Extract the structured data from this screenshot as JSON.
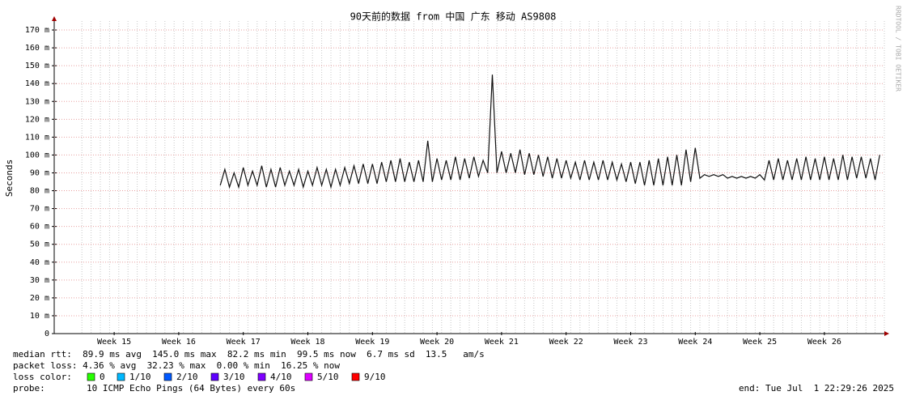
{
  "chart_data": {
    "type": "line",
    "title": "90天前的数据 from 中国 广东 移动 AS9808",
    "ylabel": "Seconds",
    "watermark": "RRDTOOL / TOBI OETIKER",
    "color": "#101010",
    "grid": true,
    "xlim": [
      0,
      90
    ],
    "xticks": [
      {
        "value": 6.5,
        "label": "Week 15"
      },
      {
        "value": 13.5,
        "label": "Week 16"
      },
      {
        "value": 20.5,
        "label": "Week 17"
      },
      {
        "value": 27.5,
        "label": "Week 18"
      },
      {
        "value": 34.5,
        "label": "Week 19"
      },
      {
        "value": 41.5,
        "label": "Week 20"
      },
      {
        "value": 48.5,
        "label": "Week 21"
      },
      {
        "value": 55.5,
        "label": "Week 22"
      },
      {
        "value": 62.5,
        "label": "Week 23"
      },
      {
        "value": 69.5,
        "label": "Week 24"
      },
      {
        "value": 76.5,
        "label": "Week 25"
      },
      {
        "value": 83.5,
        "label": "Week 26"
      }
    ],
    "ylim": [
      0,
      0.175
    ],
    "yticks": [
      0,
      {
        "value": 0.01,
        "label": "10 m"
      },
      {
        "value": 0.02,
        "label": "20 m"
      },
      {
        "value": 0.03,
        "label": "30 m"
      },
      {
        "value": 0.04,
        "label": "40 m"
      },
      {
        "value": 0.05,
        "label": "50 m"
      },
      {
        "value": 0.06,
        "label": "60 m"
      },
      {
        "value": 0.07,
        "label": "70 m"
      },
      {
        "value": 0.08,
        "label": "80 m"
      },
      {
        "value": 0.09,
        "label": "90 m"
      },
      {
        "value": 0.1,
        "label": "100 m"
      },
      {
        "value": 0.11,
        "label": "110 m"
      },
      {
        "value": 0.12,
        "label": "120 m"
      },
      {
        "value": 0.13,
        "label": "130 m"
      },
      {
        "value": 0.14,
        "label": "140 m"
      },
      {
        "value": 0.15,
        "label": "150 m"
      },
      {
        "value": 0.16,
        "label": "160 m"
      },
      {
        "value": 0.17,
        "label": "170 m"
      }
    ],
    "x": [
      18,
      18.5,
      19,
      19.5,
      20,
      20.5,
      21,
      21.5,
      22,
      22.5,
      23,
      23.5,
      24,
      24.5,
      25,
      25.5,
      26,
      26.5,
      27,
      27.5,
      28,
      28.5,
      29,
      29.5,
      30,
      30.5,
      31,
      31.5,
      32,
      32.5,
      33,
      33.5,
      34,
      34.5,
      35,
      35.5,
      36,
      36.5,
      37,
      37.5,
      38,
      38.5,
      39,
      39.5,
      40,
      40.5,
      41,
      41.5,
      42,
      42.5,
      43,
      43.5,
      44,
      44.5,
      45,
      45.5,
      46,
      46.5,
      47,
      47.5,
      48,
      48.5,
      49,
      49.5,
      50,
      50.5,
      51,
      51.5,
      52,
      52.5,
      53,
      53.5,
      54,
      54.5,
      55,
      55.5,
      56,
      56.5,
      57,
      57.5,
      58,
      58.5,
      59,
      59.5,
      60,
      60.5,
      61,
      61.5,
      62,
      62.5,
      63,
      63.5,
      64,
      64.5,
      65,
      65.5,
      66,
      66.5,
      67,
      67.5,
      68,
      68.5,
      69,
      69.5,
      70,
      70.5,
      71,
      71.5,
      72,
      72.5,
      73,
      73.5,
      74,
      74.5,
      75,
      75.5,
      76,
      76.5,
      77,
      77.5,
      78,
      78.5,
      79,
      79.5,
      80,
      80.5,
      81,
      81.5,
      82,
      82.5,
      83,
      83.5,
      84,
      84.5,
      85,
      85.5,
      86,
      86.5,
      87,
      87.5,
      88,
      88.5,
      89,
      89.5
    ],
    "values": [
      0.083,
      0.092,
      0.082,
      0.09,
      0.082,
      0.093,
      0.083,
      0.091,
      0.083,
      0.094,
      0.082,
      0.092,
      0.082,
      0.093,
      0.083,
      0.091,
      0.083,
      0.092,
      0.082,
      0.091,
      0.083,
      0.093,
      0.083,
      0.092,
      0.082,
      0.092,
      0.083,
      0.093,
      0.084,
      0.094,
      0.084,
      0.095,
      0.084,
      0.095,
      0.084,
      0.096,
      0.085,
      0.097,
      0.085,
      0.098,
      0.085,
      0.096,
      0.085,
      0.097,
      0.085,
      0.108,
      0.085,
      0.098,
      0.086,
      0.097,
      0.086,
      0.099,
      0.086,
      0.098,
      0.087,
      0.099,
      0.088,
      0.097,
      0.09,
      0.145,
      0.09,
      0.102,
      0.09,
      0.101,
      0.09,
      0.103,
      0.089,
      0.101,
      0.089,
      0.1,
      0.088,
      0.099,
      0.087,
      0.098,
      0.087,
      0.097,
      0.087,
      0.096,
      0.086,
      0.097,
      0.086,
      0.096,
      0.086,
      0.097,
      0.086,
      0.096,
      0.086,
      0.095,
      0.085,
      0.096,
      0.084,
      0.096,
      0.083,
      0.097,
      0.083,
      0.098,
      0.083,
      0.099,
      0.083,
      0.1,
      0.083,
      0.103,
      0.085,
      0.104,
      0.087,
      0.089,
      0.088,
      0.089,
      0.088,
      0.089,
      0.087,
      0.088,
      0.087,
      0.088,
      0.087,
      0.088,
      0.087,
      0.089,
      0.086,
      0.097,
      0.086,
      0.098,
      0.086,
      0.097,
      0.086,
      0.098,
      0.086,
      0.099,
      0.086,
      0.098,
      0.086,
      0.099,
      0.086,
      0.098,
      0.086,
      0.1,
      0.086,
      0.099,
      0.087,
      0.099,
      0.087,
      0.098,
      0.086,
      0.1
    ],
    "stats": {
      "median_rtt": "median rtt:  89.9 ms avg  145.0 ms max  82.2 ms min  99.5 ms now  6.7 ms sd  13.5   am/s",
      "packet_loss": "packet loss: 4.36 % avg  32.23 % max  0.00 % min  16.25 % now",
      "loss_color_label": "loss color:",
      "loss_colors": [
        {
          "label": "0",
          "color": "#26ff00"
        },
        {
          "label": "1/10",
          "color": "#00b8ff"
        },
        {
          "label": "2/10",
          "color": "#0059ff"
        },
        {
          "label": "3/10",
          "color": "#5e00ff"
        },
        {
          "label": "4/10",
          "color": "#7e00ff"
        },
        {
          "label": "5/10",
          "color": "#dd00ff"
        },
        {
          "label": "9/10",
          "color": "#ff0000"
        }
      ],
      "probe_label": "probe:",
      "probe": "10 ICMP Echo Pings (64 Bytes) every 60s",
      "end": "end: Tue Jul  1 22:29:26 2025"
    }
  }
}
